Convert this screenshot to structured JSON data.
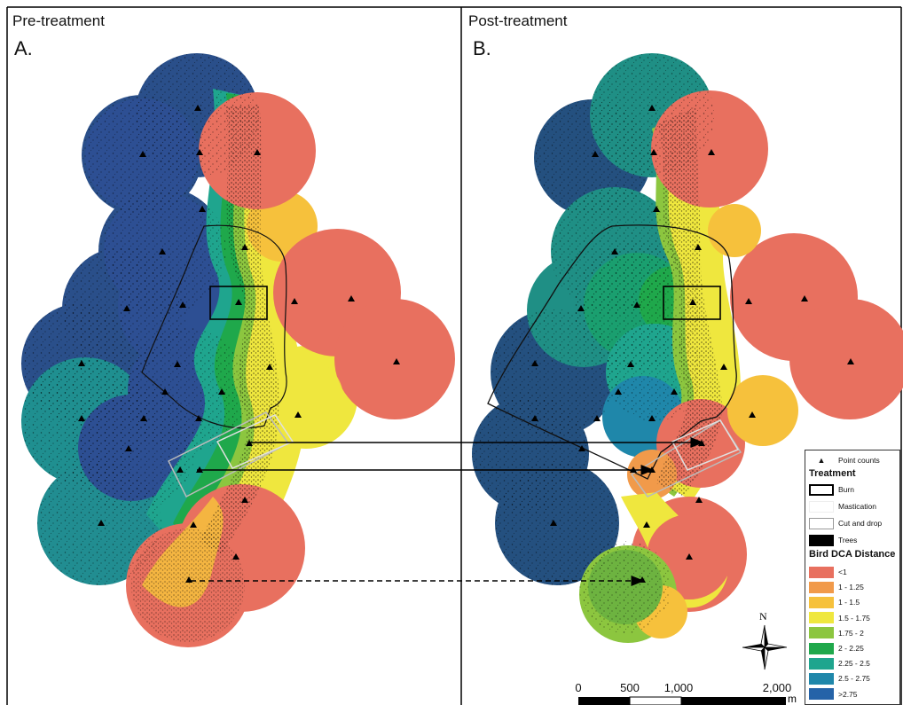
{
  "panels": [
    {
      "title": "Pre-treatment",
      "letter": "A."
    },
    {
      "title": "Post-treatment",
      "letter": "B."
    }
  ],
  "legend": {
    "point_counts_label": "Point counts",
    "treatment_heading": "Treatment",
    "treatments": [
      {
        "label": "Burn",
        "style": "thick-black-outline"
      },
      {
        "label": "Mastication",
        "style": "light-outline"
      },
      {
        "label": "Cut and drop",
        "style": "grey-outline"
      },
      {
        "label": "Trees",
        "style": "black-fill"
      }
    ],
    "distance_heading": "Bird DCA Distance",
    "classes": [
      {
        "label": "<1",
        "color": "#e8705f"
      },
      {
        "label": "1 - 1.25",
        "color": "#f19a4a"
      },
      {
        "label": "1 - 1.5",
        "color": "#f6c13c"
      },
      {
        "label": "1.5 - 1.75",
        "color": "#efe73e"
      },
      {
        "label": "1.75 - 2",
        "color": "#8cc63f"
      },
      {
        "label": "2 - 2.25",
        "color": "#1fa84b"
      },
      {
        "label": "2.25 - 2.5",
        "color": "#1fa58e"
      },
      {
        "label": "2.5 - 2.75",
        "color": "#1f87aa"
      },
      {
        "label": ">2.75",
        "color": "#2563a8"
      }
    ]
  },
  "scale_bar": {
    "ticks": [
      "0",
      "500",
      "1,000",
      "2,000"
    ],
    "unit": "m"
  },
  "north_arrow": {
    "label": "N"
  }
}
